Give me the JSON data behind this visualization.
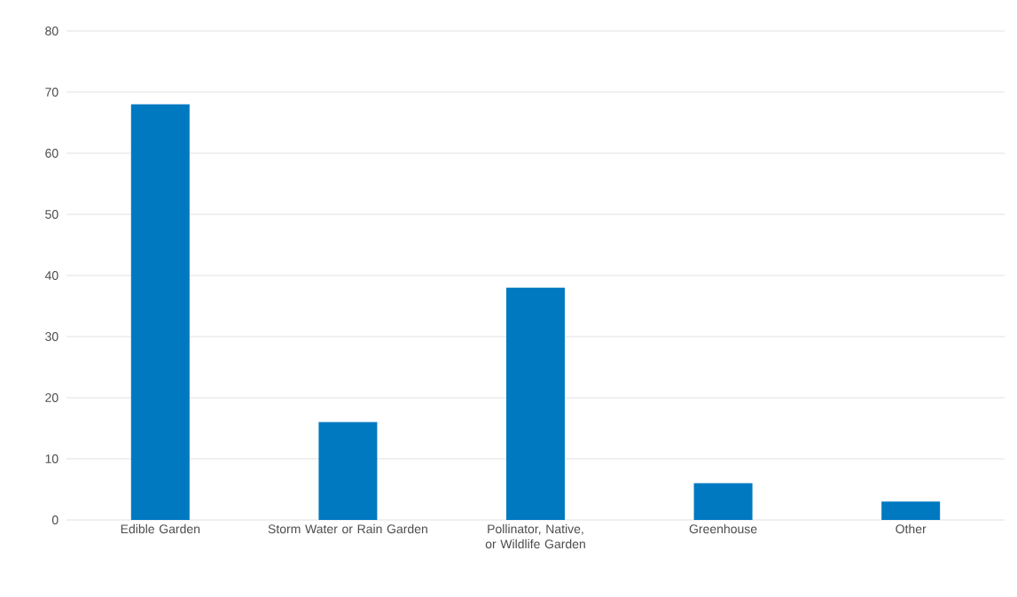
{
  "chart_data": {
    "type": "bar",
    "categories": [
      "Edible Garden",
      "Storm Water or Rain Garden",
      "Pollinator, Native, or Wildlife Garden",
      "Greenhouse",
      "Other"
    ],
    "values": [
      68,
      16,
      38,
      6,
      3
    ],
    "color": "#0079c1",
    "ylim": [
      0,
      80
    ],
    "yticks": [
      0,
      10,
      20,
      30,
      40,
      50,
      60,
      70,
      80
    ],
    "grid": "y"
  }
}
